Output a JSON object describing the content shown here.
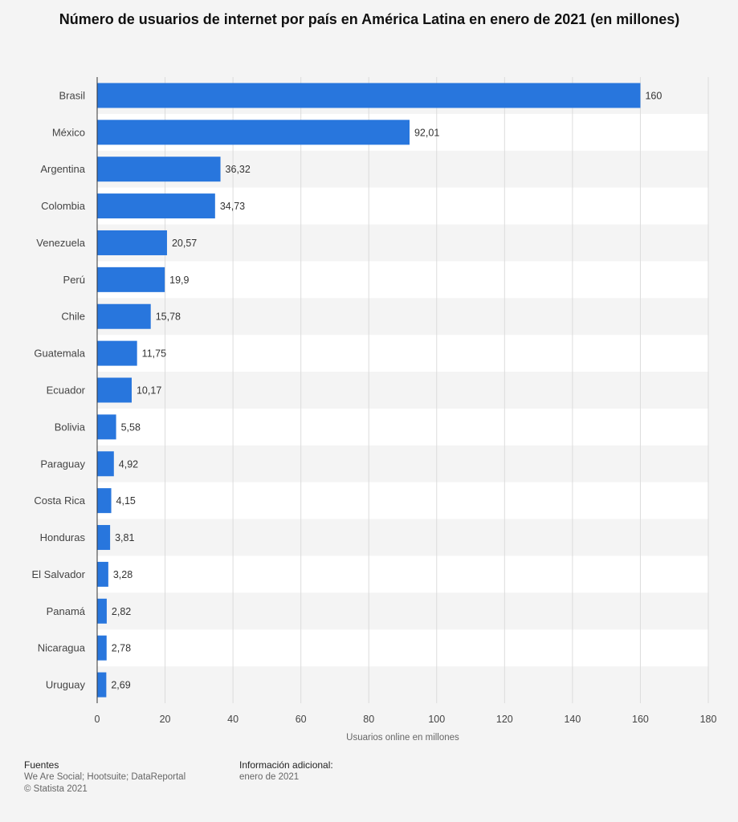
{
  "header": {
    "title": "Número de usuarios de internet por país en América Latina en enero de 2021 (en millones)"
  },
  "colors": {
    "bar": "#2876dd",
    "background": "#f4f4f4",
    "band": "#ffffff",
    "grid": "#dcdcdc"
  },
  "chart_data": {
    "type": "bar",
    "orientation": "horizontal",
    "categories": [
      "Brasil",
      "México",
      "Argentina",
      "Colombia",
      "Venezuela",
      "Perú",
      "Chile",
      "Guatemala",
      "Ecuador",
      "Bolivia",
      "Paraguay",
      "Costa Rica",
      "Honduras",
      "El Salvador",
      "Panamá",
      "Nicaragua",
      "Uruguay"
    ],
    "values": [
      160,
      92.01,
      36.32,
      34.73,
      20.57,
      19.9,
      15.78,
      11.75,
      10.17,
      5.58,
      4.92,
      4.15,
      3.81,
      3.28,
      2.82,
      2.78,
      2.69
    ],
    "value_labels": [
      "160",
      "92,01",
      "36,32",
      "34,73",
      "20,57",
      "19,9",
      "15,78",
      "11,75",
      "10,17",
      "5,58",
      "4,92",
      "4,15",
      "3,81",
      "3,28",
      "2,82",
      "2,78",
      "2,69"
    ],
    "xlabel": "Usuarios online en millones",
    "ylabel": "",
    "xlim": [
      0,
      180
    ],
    "xticks": [
      0,
      20,
      40,
      60,
      80,
      100,
      120,
      140,
      160,
      180
    ],
    "grid": true
  },
  "footer": {
    "sources_heading": "Fuentes",
    "sources_text": "We Are Social; Hootsuite; DataReportal",
    "copyright": "© Statista 2021",
    "info_heading": "Información adicional:",
    "info_text": "enero de 2021"
  }
}
